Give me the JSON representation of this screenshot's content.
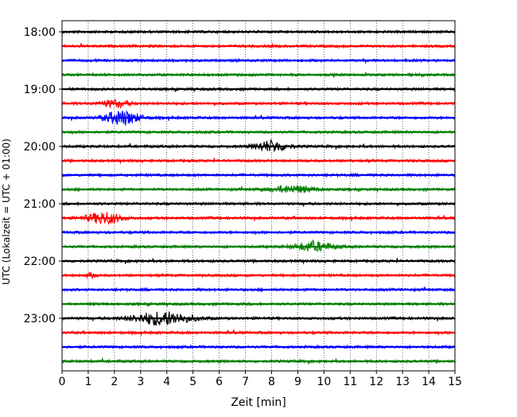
{
  "chart_data": {
    "type": "line",
    "title": "",
    "xlabel": "Zeit  [min]",
    "ylabel": "UTC (Lokalzeit = UTC + 01:00)",
    "xlim": [
      0,
      15
    ],
    "x_ticks": [
      0,
      1,
      2,
      3,
      4,
      5,
      6,
      7,
      8,
      9,
      10,
      11,
      12,
      13,
      14,
      15
    ],
    "y_ticks": [
      {
        "label": "18:00",
        "trace_index": 0
      },
      {
        "label": "19:00",
        "trace_index": 4
      },
      {
        "label": "20:00",
        "trace_index": 8
      },
      {
        "label": "21:00",
        "trace_index": 12
      },
      {
        "label": "22:00",
        "trace_index": 16
      },
      {
        "label": "23:00",
        "trace_index": 20
      }
    ],
    "trace_interval_minutes": 15,
    "trace_colors": [
      "#000000",
      "#ff0000",
      "#0000ff",
      "#008000"
    ],
    "grid": {
      "x_dotted": true,
      "y": false
    },
    "legend": "none",
    "series": [
      {
        "start": "18:00",
        "events": []
      },
      {
        "start": "18:15",
        "events": []
      },
      {
        "start": "18:30",
        "events": []
      },
      {
        "start": "18:45",
        "events": []
      },
      {
        "start": "19:00",
        "events": []
      },
      {
        "start": "19:15",
        "events": [
          {
            "center_min": 2.0,
            "width_min": 1.2,
            "amplitude": 0.45
          }
        ]
      },
      {
        "start": "19:30",
        "events": [
          {
            "center_min": 2.3,
            "width_min": 1.4,
            "amplitude": 1.0
          }
        ]
      },
      {
        "start": "19:45",
        "events": []
      },
      {
        "start": "20:00",
        "events": [
          {
            "center_min": 8.0,
            "width_min": 1.4,
            "amplitude": 0.75
          }
        ]
      },
      {
        "start": "20:15",
        "events": []
      },
      {
        "start": "20:30",
        "events": []
      },
      {
        "start": "20:45",
        "events": [
          {
            "center_min": 8.8,
            "width_min": 2.0,
            "amplitude": 0.45
          }
        ]
      },
      {
        "start": "21:00",
        "events": []
      },
      {
        "start": "21:15",
        "events": [
          {
            "center_min": 1.6,
            "width_min": 1.4,
            "amplitude": 0.8
          }
        ]
      },
      {
        "start": "21:30",
        "events": []
      },
      {
        "start": "21:45",
        "events": [
          {
            "center_min": 9.6,
            "width_min": 1.6,
            "amplitude": 0.6
          }
        ]
      },
      {
        "start": "22:00",
        "events": []
      },
      {
        "start": "22:15",
        "events": [
          {
            "center_min": 1.1,
            "width_min": 0.4,
            "amplitude": 0.3
          }
        ]
      },
      {
        "start": "22:30",
        "events": []
      },
      {
        "start": "22:45",
        "events": []
      },
      {
        "start": "23:00",
        "events": [
          {
            "center_min": 3.8,
            "width_min": 2.4,
            "amplitude": 0.9
          }
        ]
      },
      {
        "start": "23:15",
        "events": []
      },
      {
        "start": "23:30",
        "events": []
      },
      {
        "start": "23:45",
        "events": []
      }
    ]
  }
}
